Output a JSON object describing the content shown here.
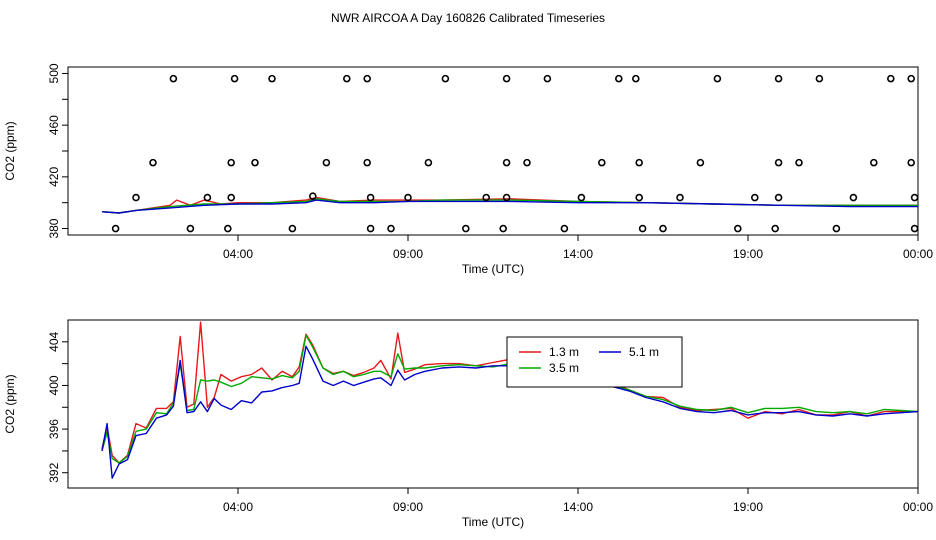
{
  "title": "NWR AIRCOA A  Day 160826  Calibrated Timeseries",
  "chart_data": [
    {
      "type": "scatter",
      "title": "NWR AIRCOA A  Day 160826  Calibrated Timeseries",
      "xlabel": "Time (UTC)",
      "ylabel": "CO2 (ppm)",
      "xlim": [
        -1.0,
        24.0
      ],
      "ylim": [
        375,
        505
      ],
      "x_ticks": [
        4,
        9,
        14,
        19,
        24
      ],
      "x_tick_labels": [
        "04:00",
        "09:00",
        "14:00",
        "19:00",
        "00:00"
      ],
      "y_ticks": [
        380,
        420,
        460,
        500
      ],
      "y_tick_labels": [
        "380",
        "420",
        "460",
        "500"
      ],
      "y_minor_ticks": [
        400,
        440,
        480
      ],
      "markers": [
        {
          "x": 0.4,
          "y": 380
        },
        {
          "x": 1.0,
          "y": 404
        },
        {
          "x": 1.5,
          "y": 431
        },
        {
          "x": 2.1,
          "y": 496
        },
        {
          "x": 2.6,
          "y": 380
        },
        {
          "x": 3.1,
          "y": 404
        },
        {
          "x": 3.7,
          "y": 380
        },
        {
          "x": 3.8,
          "y": 404
        },
        {
          "x": 3.8,
          "y": 431
        },
        {
          "x": 3.9,
          "y": 496
        },
        {
          "x": 4.5,
          "y": 431
        },
        {
          "x": 5.0,
          "y": 496
        },
        {
          "x": 5.6,
          "y": 380
        },
        {
          "x": 6.2,
          "y": 405
        },
        {
          "x": 6.6,
          "y": 431
        },
        {
          "x": 7.2,
          "y": 496
        },
        {
          "x": 7.8,
          "y": 496
        },
        {
          "x": 7.8,
          "y": 431
        },
        {
          "x": 7.9,
          "y": 404
        },
        {
          "x": 7.9,
          "y": 380
        },
        {
          "x": 8.5,
          "y": 380
        },
        {
          "x": 9.0,
          "y": 404
        },
        {
          "x": 9.6,
          "y": 431
        },
        {
          "x": 10.1,
          "y": 496
        },
        {
          "x": 10.7,
          "y": 380
        },
        {
          "x": 11.3,
          "y": 404
        },
        {
          "x": 11.8,
          "y": 380
        },
        {
          "x": 11.9,
          "y": 404
        },
        {
          "x": 11.9,
          "y": 431
        },
        {
          "x": 11.9,
          "y": 496
        },
        {
          "x": 12.5,
          "y": 431
        },
        {
          "x": 13.1,
          "y": 496
        },
        {
          "x": 13.6,
          "y": 380
        },
        {
          "x": 14.1,
          "y": 404
        },
        {
          "x": 14.7,
          "y": 431
        },
        {
          "x": 15.2,
          "y": 496
        },
        {
          "x": 15.7,
          "y": 496
        },
        {
          "x": 15.8,
          "y": 431
        },
        {
          "x": 15.8,
          "y": 404
        },
        {
          "x": 15.9,
          "y": 380
        },
        {
          "x": 16.5,
          "y": 380
        },
        {
          "x": 17.0,
          "y": 404
        },
        {
          "x": 17.6,
          "y": 431
        },
        {
          "x": 18.1,
          "y": 496
        },
        {
          "x": 18.7,
          "y": 380
        },
        {
          "x": 19.2,
          "y": 404
        },
        {
          "x": 19.8,
          "y": 380
        },
        {
          "x": 19.9,
          "y": 404
        },
        {
          "x": 19.9,
          "y": 431
        },
        {
          "x": 19.9,
          "y": 496
        },
        {
          "x": 20.5,
          "y": 431
        },
        {
          "x": 21.1,
          "y": 496
        },
        {
          "x": 21.6,
          "y": 380
        },
        {
          "x": 22.1,
          "y": 404
        },
        {
          "x": 22.7,
          "y": 431
        },
        {
          "x": 23.2,
          "y": 496
        },
        {
          "x": 23.8,
          "y": 496
        },
        {
          "x": 23.8,
          "y": 431
        },
        {
          "x": 23.9,
          "y": 404
        },
        {
          "x": 23.9,
          "y": 380
        }
      ],
      "series": [
        {
          "color": "#e41a1c",
          "x": [
            0.0,
            0.5,
            1.0,
            2.0,
            2.2,
            2.6,
            3.0,
            3.5,
            4.0,
            5.0,
            6.0,
            6.3,
            7.0,
            8.0,
            9.0,
            10.0,
            12.0,
            14.0,
            16.0,
            18.0,
            20.0,
            22.0,
            24.0
          ],
          "y": [
            393,
            392,
            394,
            398,
            402,
            398,
            402,
            399,
            400,
            400,
            402,
            404,
            401,
            402,
            402,
            402,
            403,
            401,
            400,
            399,
            398,
            398,
            398
          ]
        },
        {
          "color": "#00aa00",
          "x": [
            0.0,
            0.5,
            1.0,
            2.0,
            3.0,
            4.0,
            5.0,
            6.0,
            6.3,
            7.0,
            8.0,
            9.0,
            10.0,
            12.0,
            14.0,
            16.0,
            18.0,
            20.0,
            22.0,
            24.0
          ],
          "y": [
            393,
            392,
            394,
            397,
            399,
            399,
            400,
            401,
            403,
            401,
            401,
            401,
            402,
            402,
            401,
            400,
            399,
            398,
            398,
            398
          ]
        },
        {
          "color": "#0000cc",
          "x": [
            0.0,
            0.5,
            1.0,
            2.0,
            3.0,
            4.0,
            5.0,
            6.0,
            6.3,
            7.0,
            8.0,
            9.0,
            10.0,
            12.0,
            14.0,
            16.0,
            18.0,
            20.0,
            22.0,
            24.0
          ],
          "y": [
            393,
            392,
            394,
            396,
            398,
            399,
            399,
            400,
            402,
            400,
            400,
            401,
            401,
            401,
            400,
            400,
            399,
            398,
            397,
            397
          ]
        }
      ]
    },
    {
      "type": "line",
      "title": "",
      "xlabel": "Time (UTC)",
      "ylabel": "CO2 (ppm)",
      "xlim": [
        -1.0,
        24.0
      ],
      "ylim": [
        390.6,
        406.0
      ],
      "x_ticks": [
        4,
        9,
        14,
        19,
        24
      ],
      "x_tick_labels": [
        "04:00",
        "09:00",
        "14:00",
        "19:00",
        "00:00"
      ],
      "y_ticks": [
        392,
        396,
        400,
        404
      ],
      "y_tick_labels": [
        "392",
        "396",
        "400",
        "404"
      ],
      "y_minor_ticks": [
        394,
        398,
        402
      ],
      "legend": {
        "placement": "top-center-right",
        "entries": [
          {
            "label": "1.3 m",
            "color": "#e41a1c"
          },
          {
            "label": "5.1 m",
            "color": "#0000cc"
          },
          {
            "label": "3.5 m",
            "color": "#00aa00"
          }
        ]
      },
      "series": [
        {
          "name": "1.3 m",
          "color": "#e41a1c",
          "x": [
            0.0,
            0.15,
            0.3,
            0.5,
            0.75,
            1.0,
            1.3,
            1.6,
            1.9,
            2.1,
            2.3,
            2.5,
            2.7,
            2.9,
            3.1,
            3.3,
            3.5,
            3.8,
            4.1,
            4.4,
            4.7,
            5.0,
            5.3,
            5.6,
            5.8,
            6.0,
            6.2,
            6.5,
            6.8,
            7.1,
            7.4,
            7.7,
            8.0,
            8.2,
            8.5,
            8.7,
            8.9,
            9.2,
            9.5,
            10.0,
            10.5,
            11.0,
            11.5,
            12.0,
            12.4,
            13.0,
            13.5,
            14.0,
            14.5,
            15.0,
            15.5,
            16.0,
            16.5,
            17.0,
            17.5,
            18.0,
            18.5,
            19.0,
            19.5,
            20.0,
            20.5,
            21.0,
            21.5,
            22.0,
            22.5,
            23.0,
            23.5,
            24.0
          ],
          "y": [
            394.2,
            396.2,
            393.6,
            392.9,
            393.6,
            396.5,
            396.1,
            397.9,
            397.9,
            398.5,
            404.5,
            398.0,
            398.3,
            405.8,
            398.0,
            398.9,
            401.0,
            400.4,
            400.8,
            401.0,
            401.6,
            400.5,
            401.3,
            400.8,
            401.7,
            404.7,
            403.7,
            401.6,
            401.1,
            401.3,
            400.9,
            401.2,
            401.6,
            402.3,
            400.6,
            404.8,
            401.2,
            401.5,
            401.9,
            402.0,
            402.0,
            401.8,
            402.1,
            402.4,
            402.6,
            401.7,
            401.0,
            400.9,
            400.5,
            400.2,
            399.6,
            399.0,
            398.9,
            398.0,
            397.7,
            397.8,
            397.9,
            397.0,
            397.6,
            397.4,
            397.8,
            397.3,
            397.3,
            397.6,
            397.2,
            397.6,
            397.6,
            397.6
          ]
        },
        {
          "name": "3.5 m",
          "color": "#00aa00",
          "x": [
            0.0,
            0.15,
            0.3,
            0.5,
            0.75,
            1.0,
            1.3,
            1.6,
            1.9,
            2.1,
            2.3,
            2.5,
            2.7,
            2.9,
            3.1,
            3.3,
            3.5,
            3.8,
            4.1,
            4.4,
            4.7,
            5.0,
            5.3,
            5.6,
            5.8,
            6.0,
            6.2,
            6.5,
            6.8,
            7.1,
            7.4,
            7.7,
            8.0,
            8.2,
            8.5,
            8.7,
            8.9,
            9.2,
            9.5,
            10.0,
            10.5,
            11.0,
            11.5,
            12.0,
            12.4,
            13.0,
            13.5,
            14.0,
            14.5,
            15.0,
            15.5,
            16.0,
            16.5,
            17.0,
            17.5,
            18.0,
            18.5,
            19.0,
            19.5,
            20.0,
            20.5,
            21.0,
            21.5,
            22.0,
            22.5,
            23.0,
            23.5,
            24.0
          ],
          "y": [
            394.0,
            395.7,
            393.3,
            392.9,
            393.5,
            395.8,
            396.0,
            397.5,
            397.4,
            398.4,
            402.0,
            397.7,
            397.8,
            400.5,
            400.4,
            400.5,
            400.3,
            399.9,
            400.2,
            400.8,
            400.7,
            400.6,
            400.9,
            400.7,
            401.3,
            404.6,
            403.5,
            401.6,
            401.0,
            401.3,
            400.8,
            401.0,
            401.3,
            401.3,
            400.8,
            402.9,
            401.5,
            401.6,
            401.6,
            401.8,
            401.9,
            401.8,
            401.7,
            402.0,
            401.9,
            401.2,
            400.8,
            400.6,
            400.4,
            400.0,
            399.6,
            399.0,
            398.7,
            398.1,
            397.8,
            397.7,
            398.0,
            397.5,
            397.9,
            397.9,
            398.0,
            397.6,
            397.5,
            397.6,
            397.4,
            397.8,
            397.7,
            397.6
          ]
        },
        {
          "name": "5.1 m",
          "color": "#0000cc",
          "x": [
            0.0,
            0.15,
            0.3,
            0.5,
            0.75,
            1.0,
            1.3,
            1.6,
            1.9,
            2.1,
            2.3,
            2.5,
            2.7,
            2.9,
            3.1,
            3.3,
            3.5,
            3.8,
            4.1,
            4.4,
            4.7,
            5.0,
            5.3,
            5.6,
            5.8,
            6.0,
            6.2,
            6.5,
            6.8,
            7.1,
            7.4,
            7.7,
            8.0,
            8.2,
            8.5,
            8.7,
            8.9,
            9.2,
            9.5,
            10.0,
            10.5,
            11.0,
            11.5,
            12.0,
            12.4,
            13.0,
            13.5,
            14.0,
            14.5,
            15.0,
            15.5,
            16.0,
            16.5,
            17.0,
            17.5,
            18.0,
            18.5,
            19.0,
            19.5,
            20.0,
            20.5,
            21.0,
            21.5,
            22.0,
            22.5,
            23.0,
            23.5,
            24.0
          ],
          "y": [
            394.0,
            396.5,
            391.5,
            392.8,
            393.2,
            395.4,
            395.6,
            397.0,
            397.3,
            398.1,
            402.3,
            397.5,
            397.6,
            398.5,
            397.6,
            398.8,
            398.2,
            397.8,
            398.6,
            398.4,
            399.4,
            399.5,
            399.8,
            400.0,
            400.2,
            403.6,
            402.4,
            400.4,
            400.0,
            400.4,
            400.0,
            400.3,
            400.6,
            400.7,
            400.0,
            401.4,
            400.5,
            401.0,
            401.3,
            401.6,
            401.7,
            401.6,
            401.8,
            401.8,
            401.7,
            401.1,
            400.7,
            400.4,
            400.2,
            399.9,
            399.5,
            398.9,
            398.5,
            397.9,
            397.6,
            397.5,
            397.7,
            397.3,
            397.5,
            397.5,
            397.6,
            397.3,
            397.2,
            397.4,
            397.2,
            397.4,
            397.5,
            397.6
          ]
        }
      ]
    }
  ]
}
